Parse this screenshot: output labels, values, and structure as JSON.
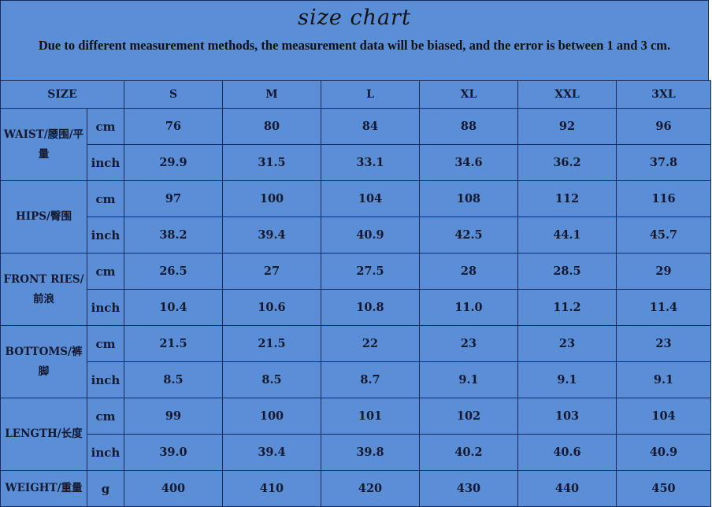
{
  "title": "size chart",
  "note": "Due to different measurement methods, the measurement data will be biased, and the error is between 1 and 3 cm.",
  "header": {
    "size_label": "SIZE",
    "sizes": [
      "S",
      "M",
      "L",
      "XL",
      "XXL",
      "3XL"
    ]
  },
  "rows": [
    {
      "label": "WAIST/腰围/平量",
      "units": [
        {
          "unit": "cm",
          "values": [
            "76",
            "80",
            "84",
            "88",
            "92",
            "96"
          ]
        },
        {
          "unit": "inch",
          "values": [
            "29.9",
            "31.5",
            "33.1",
            "34.6",
            "36.2",
            "37.8"
          ]
        }
      ]
    },
    {
      "label": "HIPS/臀围",
      "units": [
        {
          "unit": "cm",
          "values": [
            "97",
            "100",
            "104",
            "108",
            "112",
            "116"
          ]
        },
        {
          "unit": "inch",
          "values": [
            "38.2",
            "39.4",
            "40.9",
            "42.5",
            "44.1",
            "45.7"
          ]
        }
      ]
    },
    {
      "label": "FRONT RIES/前浪",
      "units": [
        {
          "unit": "cm",
          "values": [
            "26.5",
            "27",
            "27.5",
            "28",
            "28.5",
            "29"
          ]
        },
        {
          "unit": "inch",
          "values": [
            "10.4",
            "10.6",
            "10.8",
            "11.0",
            "11.2",
            "11.4"
          ]
        }
      ]
    },
    {
      "label": "BOTTOMS/裤脚",
      "units": [
        {
          "unit": "cm",
          "values": [
            "21.5",
            "21.5",
            "22",
            "23",
            "23",
            "23"
          ]
        },
        {
          "unit": "inch",
          "values": [
            "8.5",
            "8.5",
            "8.7",
            "9.1",
            "9.1",
            "9.1"
          ]
        }
      ]
    },
    {
      "label": "LENGTH/长度",
      "units": [
        {
          "unit": "cm",
          "values": [
            "99",
            "100",
            "101",
            "102",
            "103",
            "104"
          ]
        },
        {
          "unit": "inch",
          "values": [
            "39.0",
            "39.4",
            "39.8",
            "40.2",
            "40.6",
            "40.9"
          ]
        }
      ]
    },
    {
      "label": "WEIGHT/重量",
      "units": [
        {
          "unit": "g",
          "values": [
            "400",
            "410",
            "420",
            "430",
            "440",
            "450"
          ]
        }
      ]
    }
  ],
  "colors": {
    "background": "#5a8fd7",
    "border": "#1c2a55"
  }
}
